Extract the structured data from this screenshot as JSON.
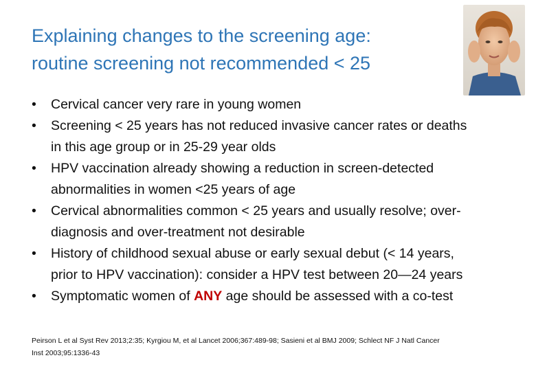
{
  "title": {
    "line1": "Explaining changes to the screening age:",
    "line2": "routine screening not recommended < 25"
  },
  "bullets": [
    {
      "lines": [
        "Cervical cancer very rare in young women"
      ]
    },
    {
      "lines": [
        "Screening < 25 years has not reduced invasive cancer rates or deaths",
        "in this age group or in 25-29 year olds"
      ]
    },
    {
      "lines": [
        "HPV vaccination already showing a reduction in screen-detected",
        "abnormalities in women <25 years of age"
      ]
    },
    {
      "lines": [
        "Cervical abnormalities common < 25 years and usually resolve; over-",
        "diagnosis and over-treatment not desirable"
      ]
    },
    {
      "lines": [
        "History of childhood sexual abuse or early sexual debut (< 14 years,",
        "prior to HPV vaccination): consider a HPV test between 20—24 years"
      ]
    },
    {
      "before": "Symptomatic women of ",
      "emphasis": "ANY",
      "after": " age should be assessed with a co-test"
    }
  ],
  "bullet_glyph": "•",
  "references": {
    "line1": "Peirson L et al Syst Rev 2013;2:35; Kyrgiou M, et al Lancet 2006;367:489-98; Sasieni et al BMJ 2009; Schlect NF J Natl Cancer",
    "line2": "Inst 2003;95:1336-43"
  },
  "photo": {
    "icon": "portrait-photo"
  },
  "colors": {
    "title": "#2E75B6",
    "emphasis": "#C00000",
    "text": "#111111"
  }
}
